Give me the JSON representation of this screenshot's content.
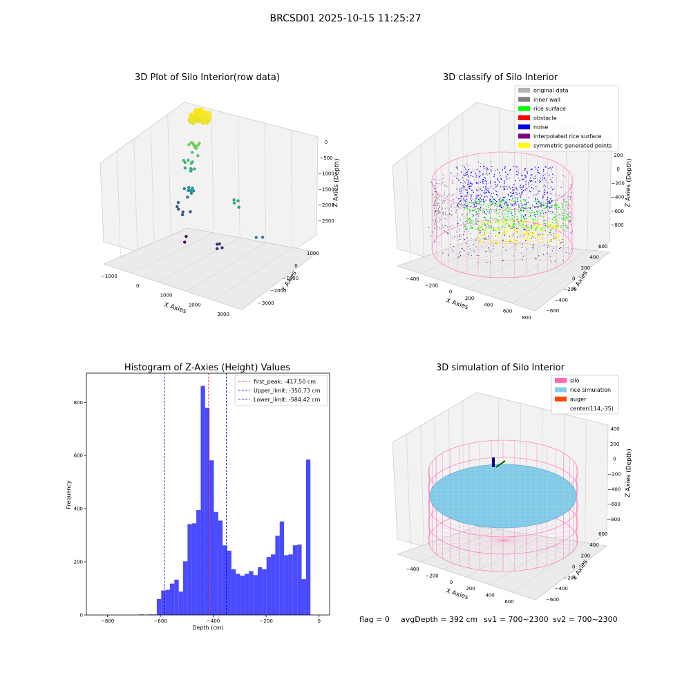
{
  "figure": {
    "suptitle": "BRCSD01 2025-10-15 11:25:27",
    "footer": {
      "flag": "flag = 0",
      "avg_depth": "avgDepth = 392 cm",
      "sv1": "sv1 = 700~2300",
      "sv2": "sv2 = 700~2300"
    }
  },
  "colors": {
    "histogram_bar": "#4a4aff",
    "peak_line": "#ff0000",
    "limit_line": "#0000cc",
    "pane_fill": "#f2f2f2",
    "grid": "#d9d9d9",
    "silo_wire": "#ff69b4",
    "rice_fill": "#87ceeb",
    "noise": "#0000ff",
    "rice_surface": "#00ff00",
    "symmetric": "#ffff00",
    "inner_wall": "#808080"
  },
  "chart_data": [
    {
      "type": "scatter",
      "projection": "3d",
      "title": "3D Plot of Silo Interior(row data)",
      "xlabel": "X Axies",
      "ylabel": "Y Axies",
      "zlabel": "Z Axies (Depth)",
      "x_ticks": [
        "−1000",
        "0",
        "1000",
        "2000",
        "3000"
      ],
      "y_ticks": [
        "1000",
        "0",
        "−1000",
        "−2000",
        "−3000"
      ],
      "z_ticks": [
        "0",
        "−500",
        "−1000",
        "−1500",
        "−2000",
        "−2500"
      ],
      "points": [
        {
          "x": 150,
          "y": 0,
          "z": -50,
          "n": 90
        },
        {
          "x": 50,
          "y": -200,
          "z": -700,
          "n": 12
        },
        {
          "x": 0,
          "y": -400,
          "z": -1000,
          "n": 10
        },
        {
          "x": 100,
          "y": -600,
          "z": -1500,
          "n": 8
        },
        {
          "x": 2000,
          "y": -1500,
          "z": -1200,
          "n": 4
        },
        {
          "x": 3000,
          "y": -2000,
          "z": -1500,
          "n": 2
        },
        {
          "x": -200,
          "y": -300,
          "z": -2000,
          "n": 6
        },
        {
          "x": 1200,
          "y": -1000,
          "z": -2400,
          "n": 4
        },
        {
          "x": -500,
          "y": 200,
          "z": -2700,
          "n": 2
        }
      ]
    },
    {
      "type": "scatter",
      "projection": "3d",
      "title": "3D classify of Silo Interior",
      "xlabel": "X Axies",
      "ylabel": "Y Axies",
      "zlabel": "Z Axies (Depth)",
      "x_ticks": [
        "−400",
        "−200",
        "0",
        "200",
        "400",
        "600",
        "800"
      ],
      "y_ticks": [
        "600",
        "400",
        "200",
        "0",
        "−200",
        "−400",
        "−600"
      ],
      "z_ticks": [
        "200",
        "0",
        "−200",
        "−400",
        "−600",
        "−800"
      ],
      "legend": [
        {
          "label": "original data",
          "color": "#b3b3b3"
        },
        {
          "label": "inner wall",
          "color": "#808080"
        },
        {
          "label": "rice surface",
          "color": "#00ff00"
        },
        {
          "label": "obstacle",
          "color": "#ff0000"
        },
        {
          "label": "noise",
          "color": "#0000ff"
        },
        {
          "label": "interpolated rice surface",
          "color": "#800080"
        },
        {
          "label": "symmetric generated points",
          "color": "#ffff00"
        }
      ],
      "legend_position": "top-right"
    },
    {
      "type": "bar",
      "title": "Histogram of Z-Axies (Height) Values",
      "xlabel": "Depth (cm)",
      "ylabel": "Frequency",
      "xlim": [
        -880,
        40
      ],
      "ylim": [
        0,
        910
      ],
      "x_ticks": [
        -800,
        -600,
        -400,
        -200,
        0
      ],
      "x_tick_labels": [
        "−800",
        "−600",
        "−400",
        "−200",
        "0"
      ],
      "y_ticks": [
        0,
        200,
        400,
        600,
        800
      ],
      "y_tick_labels": [
        "0",
        "200",
        "400",
        "600",
        "800"
      ],
      "bin_start": -680,
      "bin_width": 16.6,
      "counts": [
        2,
        0,
        2,
        2,
        60,
        92,
        95,
        118,
        133,
        88,
        202,
        342,
        345,
        395,
        862,
        780,
        582,
        388,
        355,
        262,
        242,
        172,
        155,
        148,
        155,
        165,
        150,
        180,
        172,
        218,
        228,
        298,
        352,
        225,
        228,
        262,
        265,
        135,
        585
      ],
      "lines": [
        {
          "label": "first_peak: -417.50 cm",
          "x": -417.5,
          "color": "#ff0000"
        },
        {
          "label": "Upper_limit: -350.73 cm",
          "x": -350.73,
          "color": "#0000cc"
        },
        {
          "label": "Lower_limit: -584.42 cm",
          "x": -584.42,
          "color": "#0000cc"
        }
      ],
      "legend_position": "top-right"
    },
    {
      "type": "surface",
      "projection": "3d",
      "title": "3D simulation of Silo Interior",
      "xlabel": "X Axies",
      "ylabel": "Y Axies",
      "zlabel": "Z Axies (Depth)",
      "x_ticks": [
        "−400",
        "−200",
        "0",
        "200",
        "400",
        "600"
      ],
      "y_ticks": [
        "600",
        "400",
        "200",
        "0",
        "−200",
        "−400",
        "−600"
      ],
      "z_ticks": [
        "400",
        "200",
        "0",
        "−200",
        "−400",
        "−600",
        "−800"
      ],
      "legend": [
        {
          "label": "silo",
          "color": "#ff69b4"
        },
        {
          "label": "rice simulation",
          "color": "#87ceeb"
        },
        {
          "label": "auger",
          "color": "#ff4500"
        },
        {
          "label": "center(114,-35)",
          "color": ""
        }
      ],
      "legend_position": "top-right"
    }
  ]
}
